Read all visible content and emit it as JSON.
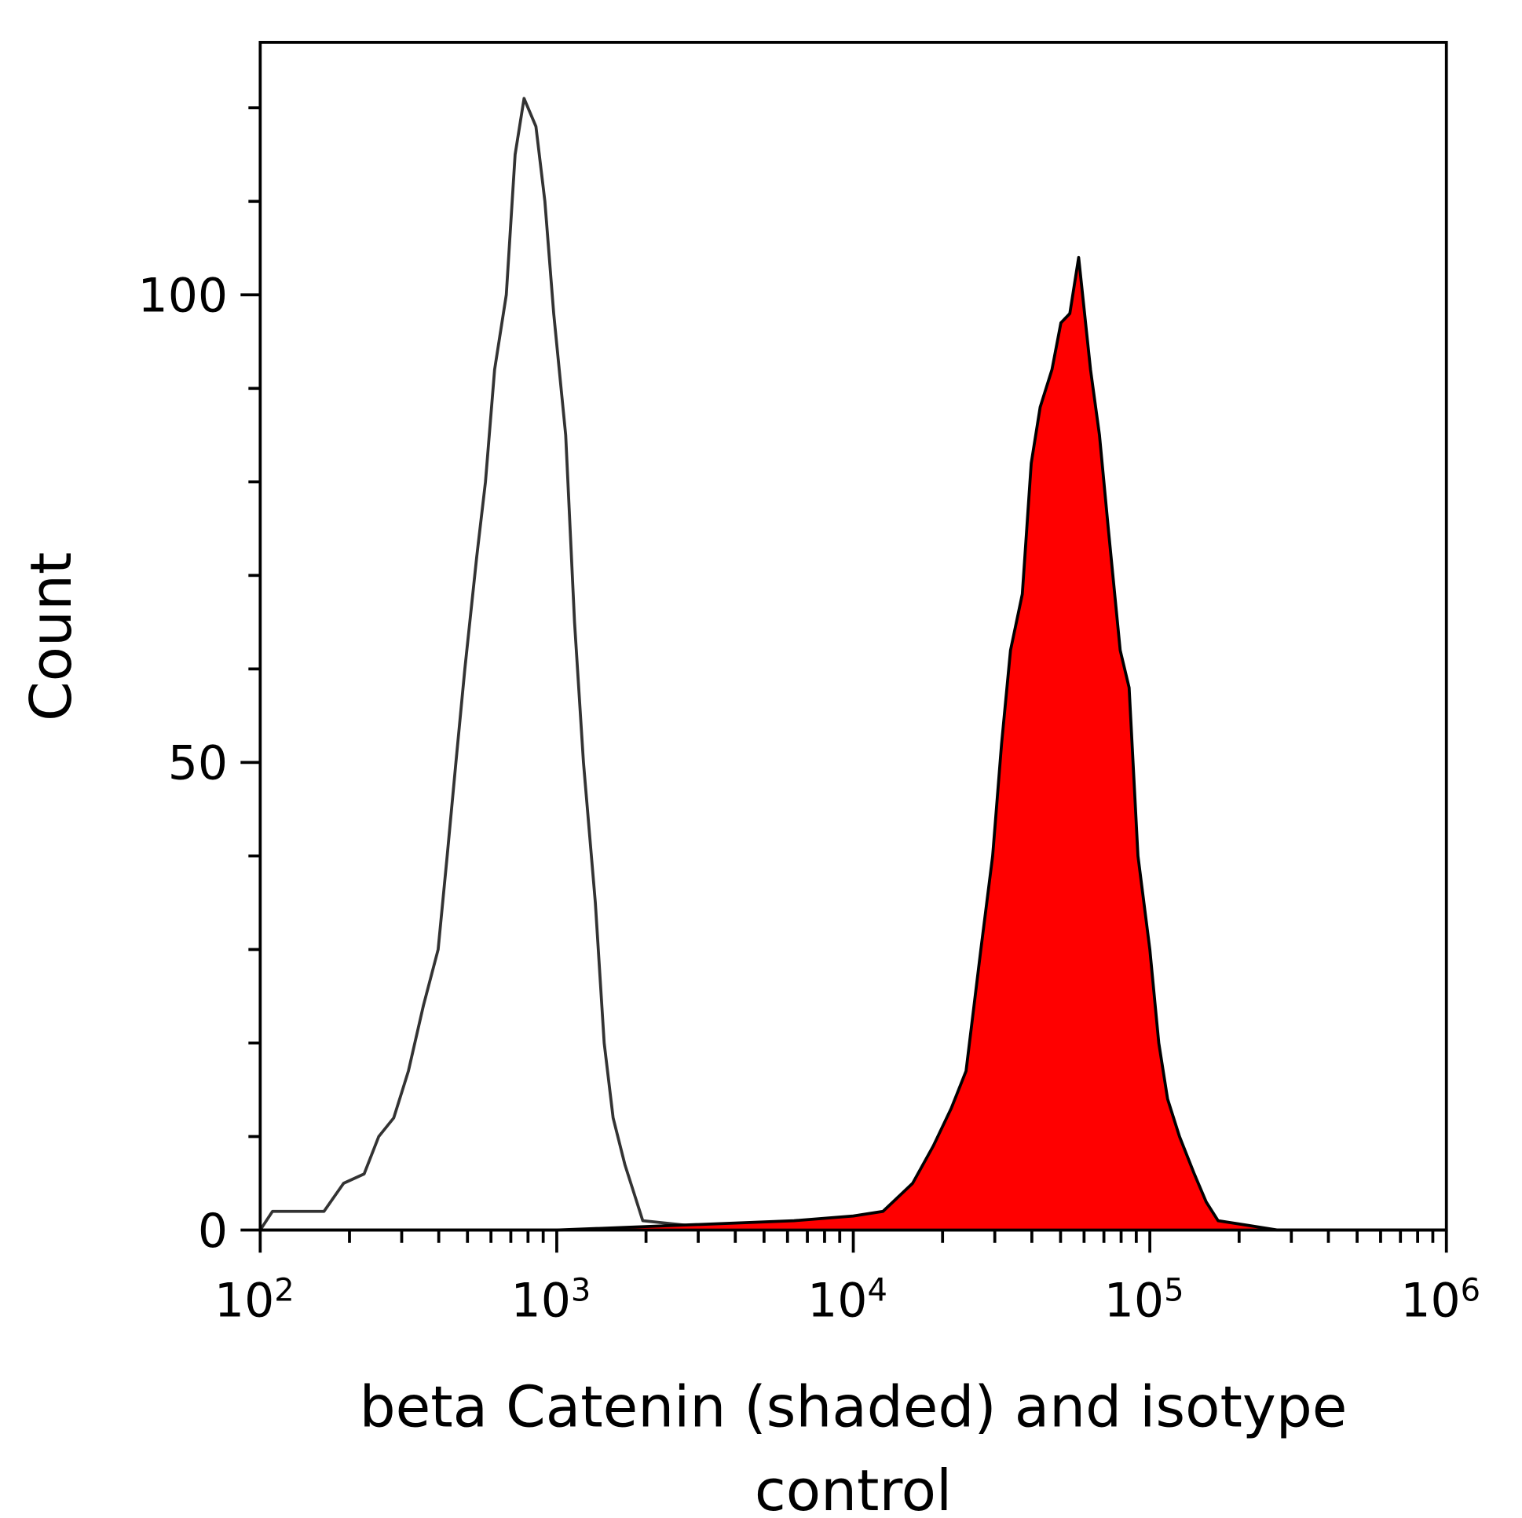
{
  "chart_data": {
    "type": "area",
    "title": "",
    "xlabel": "beta Catenin (shaded) and isotype control",
    "ylabel": "Count",
    "xscale": "log",
    "xlim": [
      100,
      1000000
    ],
    "ylim": [
      0,
      127
    ],
    "grid": false,
    "x_ticks": [
      {
        "value": 100,
        "base": "10",
        "exp": "2"
      },
      {
        "value": 1000,
        "base": "10",
        "exp": "3"
      },
      {
        "value": 10000,
        "base": "10",
        "exp": "4"
      },
      {
        "value": 100000,
        "base": "10",
        "exp": "5"
      },
      {
        "value": 1000000,
        "base": "10",
        "exp": "6"
      }
    ],
    "y_ticks": [
      {
        "value": 0,
        "label": "0"
      },
      {
        "value": 50,
        "label": "50"
      },
      {
        "value": 100,
        "label": "100"
      }
    ],
    "y_minor_step": 10,
    "series": [
      {
        "style": "outline",
        "color": "#333333",
        "x": [
          100,
          110,
          131,
          164,
          191,
          224,
          251,
          282,
          316,
          355,
          398,
          427,
          457,
          490,
          537,
          575,
          617,
          676,
          724,
          776,
          851,
          912,
          977,
          1072,
          1148,
          1230,
          1349,
          1445,
          1549,
          1698,
          1820,
          1950,
          3162,
          10000,
          100000,
          1000000
        ],
        "y": [
          0,
          2,
          2,
          2,
          5,
          6,
          10,
          12,
          17,
          24,
          30,
          40,
          50,
          60,
          72,
          80,
          92,
          100,
          115,
          121,
          118,
          110,
          98,
          85,
          65,
          50,
          35,
          20,
          12,
          7,
          4,
          1,
          0.3,
          0,
          0,
          0
        ]
      },
      {
        "style": "filled",
        "color": "#ff0000",
        "line_color": "#000000",
        "x": [
          100,
          1000,
          6310,
          10000,
          12589,
          15849,
          18621,
          21380,
          23988,
          26915,
          29512,
          31623,
          33884,
          37154,
          39811,
          42658,
          46774,
          50119,
          53703,
          57544,
          63096,
          67608,
          72444,
          79433,
          85114,
          91201,
          100000,
          107152,
          114815,
          125893,
          141254,
          154882,
          169824,
          213796,
          269153,
          1000000
        ],
        "y": [
          0,
          0,
          1,
          1.5,
          2,
          5,
          9,
          13,
          17,
          30,
          40,
          52,
          62,
          68,
          82,
          88,
          92,
          97,
          98,
          104,
          92,
          85,
          75,
          62,
          58,
          40,
          30,
          20,
          14,
          10,
          6,
          3,
          1,
          0.5,
          0,
          0
        ]
      }
    ]
  }
}
